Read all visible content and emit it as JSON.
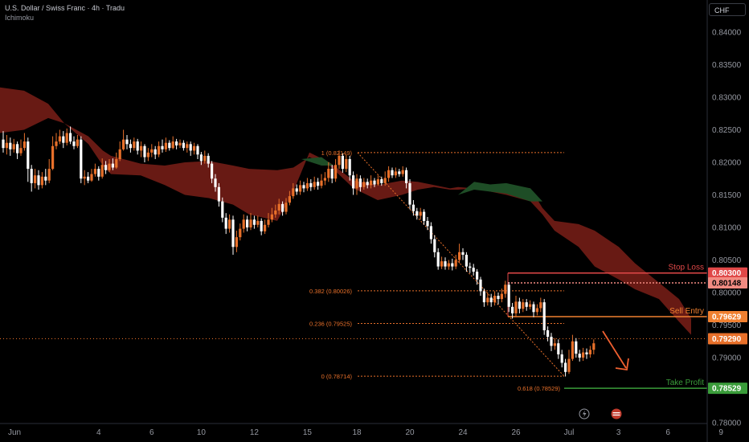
{
  "header": {
    "title": "U.S. Dollar / Swiss Franc · 4h · Tradu",
    "indicator": "Ichimoku"
  },
  "currency_button": "CHF",
  "colors": {
    "background": "#000000",
    "bull": "#e8702a",
    "bear": "#ffffff",
    "cloud_bear": "#7a1f17",
    "cloud_bull": "#1e4d26",
    "stop_loss": "#e04848",
    "sell_entry": "#f08030",
    "take_profit": "#3a9c3a",
    "fib": "#e8702a",
    "price_line": "#e8702a",
    "axis_text": "#9598a1"
  },
  "chart_data": {
    "type": "candlestick",
    "title": "U.S. Dollar / Swiss Franc · 4h · Tradu",
    "ylim": [
      0.78,
      0.8445
    ],
    "y_ticks": [
      "0.84000",
      "0.83500",
      "0.83000",
      "0.82500",
      "0.82000",
      "0.81500",
      "0.81000",
      "0.80500",
      "0.80000",
      "0.79500",
      "0.79000",
      "0.78500",
      "0.78000"
    ],
    "y_tick_values": [
      0.84,
      0.835,
      0.83,
      0.825,
      0.82,
      0.815,
      0.81,
      0.805,
      0.8,
      0.795,
      0.79,
      0.785,
      0.78
    ],
    "x_ticks": [
      "Jun",
      "4",
      "6",
      "10",
      "12",
      "15",
      "18",
      "20",
      "24",
      "26",
      "Jul",
      "3",
      "6",
      "9"
    ],
    "x_tick_bars": [
      2,
      27,
      42,
      56,
      71,
      86,
      100,
      115,
      130,
      145,
      160,
      174,
      188,
      203
    ],
    "candles": [
      [
        0.8235,
        0.8222,
        0.8248,
        0.8215
      ],
      [
        0.8222,
        0.823,
        0.8242,
        0.8212
      ],
      [
        0.823,
        0.822,
        0.8238,
        0.821
      ],
      [
        0.822,
        0.8228,
        0.8236,
        0.8215
      ],
      [
        0.8228,
        0.8214,
        0.8232,
        0.8205
      ],
      [
        0.8214,
        0.8222,
        0.8235,
        0.821
      ],
      [
        0.8222,
        0.8232,
        0.8245,
        0.8218
      ],
      [
        0.8232,
        0.819,
        0.8238,
        0.817
      ],
      [
        0.819,
        0.8168,
        0.8196,
        0.8155
      ],
      [
        0.8168,
        0.818,
        0.819,
        0.816
      ],
      [
        0.818,
        0.8165,
        0.8188,
        0.8158
      ],
      [
        0.8165,
        0.8178,
        0.8185,
        0.816
      ],
      [
        0.8178,
        0.8172,
        0.819,
        0.8165
      ],
      [
        0.8172,
        0.819,
        0.8205,
        0.8168
      ],
      [
        0.819,
        0.8225,
        0.824,
        0.8188
      ],
      [
        0.8225,
        0.8232,
        0.8245,
        0.822
      ],
      [
        0.8232,
        0.824,
        0.825,
        0.8228
      ],
      [
        0.824,
        0.823,
        0.8248,
        0.8222
      ],
      [
        0.823,
        0.8245,
        0.8252,
        0.8226
      ],
      [
        0.8245,
        0.8232,
        0.8255,
        0.8228
      ],
      [
        0.8232,
        0.8225,
        0.824,
        0.822
      ],
      [
        0.8225,
        0.8235,
        0.8242,
        0.8222
      ],
      [
        0.8235,
        0.8175,
        0.824,
        0.8168
      ],
      [
        0.8175,
        0.8178,
        0.8188,
        0.8165
      ],
      [
        0.8178,
        0.8172,
        0.8185,
        0.8168
      ],
      [
        0.8172,
        0.8182,
        0.819,
        0.817
      ],
      [
        0.8182,
        0.819,
        0.8198,
        0.8178
      ],
      [
        0.819,
        0.8178,
        0.8194,
        0.8172
      ],
      [
        0.8178,
        0.8196,
        0.8206,
        0.8175
      ],
      [
        0.8196,
        0.8188,
        0.8202,
        0.8182
      ],
      [
        0.8188,
        0.8198,
        0.8205,
        0.8185
      ],
      [
        0.8198,
        0.8192,
        0.8206,
        0.8188
      ],
      [
        0.8192,
        0.8205,
        0.8215,
        0.819
      ],
      [
        0.8205,
        0.822,
        0.8232,
        0.8202
      ],
      [
        0.822,
        0.8235,
        0.825,
        0.8218
      ],
      [
        0.8235,
        0.8228,
        0.8242,
        0.822
      ],
      [
        0.8228,
        0.8222,
        0.8235,
        0.8215
      ],
      [
        0.8222,
        0.8232,
        0.8238,
        0.8218
      ],
      [
        0.8232,
        0.8218,
        0.8236,
        0.8212
      ],
      [
        0.8218,
        0.8225,
        0.8232,
        0.8208
      ],
      [
        0.8225,
        0.8208,
        0.8228,
        0.82
      ],
      [
        0.8208,
        0.8215,
        0.8222,
        0.8202
      ],
      [
        0.8215,
        0.822,
        0.8228,
        0.8208
      ],
      [
        0.822,
        0.8212,
        0.8225,
        0.8205
      ],
      [
        0.8212,
        0.8225,
        0.8232,
        0.8208
      ],
      [
        0.8225,
        0.822,
        0.8235,
        0.8215
      ],
      [
        0.822,
        0.823,
        0.8238,
        0.8216
      ],
      [
        0.823,
        0.8222,
        0.8234,
        0.8218
      ],
      [
        0.8222,
        0.8232,
        0.824,
        0.822
      ],
      [
        0.8232,
        0.8226,
        0.8236,
        0.822
      ],
      [
        0.8226,
        0.823,
        0.8235,
        0.8222
      ],
      [
        0.823,
        0.8222,
        0.8234,
        0.8218
      ],
      [
        0.8222,
        0.8228,
        0.8232,
        0.8215
      ],
      [
        0.8228,
        0.8218,
        0.8232,
        0.821
      ],
      [
        0.8218,
        0.8225,
        0.823,
        0.8212
      ],
      [
        0.8225,
        0.8212,
        0.8228,
        0.8205
      ],
      [
        0.8212,
        0.8202,
        0.8216,
        0.8196
      ],
      [
        0.8202,
        0.821,
        0.8218,
        0.8198
      ],
      [
        0.821,
        0.8198,
        0.8214,
        0.8192
      ],
      [
        0.8198,
        0.8175,
        0.8202,
        0.8168
      ],
      [
        0.8175,
        0.8162,
        0.8182,
        0.8155
      ],
      [
        0.8162,
        0.814,
        0.8168,
        0.8132
      ],
      [
        0.814,
        0.8115,
        0.8146,
        0.8108
      ],
      [
        0.8115,
        0.8098,
        0.8122,
        0.809
      ],
      [
        0.8098,
        0.8112,
        0.812,
        0.8092
      ],
      [
        0.8112,
        0.807,
        0.8118,
        0.8058
      ],
      [
        0.807,
        0.8085,
        0.8095,
        0.8062
      ],
      [
        0.8085,
        0.8098,
        0.8106,
        0.808
      ],
      [
        0.8098,
        0.8112,
        0.812,
        0.8092
      ],
      [
        0.8112,
        0.81,
        0.8118,
        0.8094
      ],
      [
        0.81,
        0.8112,
        0.8122,
        0.8096
      ],
      [
        0.8112,
        0.8104,
        0.8118,
        0.8098
      ],
      [
        0.8104,
        0.811,
        0.8118,
        0.81
      ],
      [
        0.811,
        0.8094,
        0.8114,
        0.8088
      ],
      [
        0.8094,
        0.8104,
        0.8112,
        0.809
      ],
      [
        0.8104,
        0.8112,
        0.8122,
        0.81
      ],
      [
        0.8112,
        0.812,
        0.813,
        0.8108
      ],
      [
        0.812,
        0.8126,
        0.8135,
        0.8115
      ],
      [
        0.8126,
        0.8136,
        0.8144,
        0.812
      ],
      [
        0.8136,
        0.8124,
        0.814,
        0.8118
      ],
      [
        0.8124,
        0.8138,
        0.8145,
        0.812
      ],
      [
        0.8138,
        0.8148,
        0.8156,
        0.8134
      ],
      [
        0.8148,
        0.816,
        0.8168,
        0.8144
      ],
      [
        0.816,
        0.8155,
        0.8166,
        0.815
      ],
      [
        0.8155,
        0.8165,
        0.8172,
        0.815
      ],
      [
        0.8165,
        0.816,
        0.817,
        0.8154
      ],
      [
        0.816,
        0.8168,
        0.8176,
        0.8156
      ],
      [
        0.8168,
        0.8162,
        0.8174,
        0.8156
      ],
      [
        0.8162,
        0.817,
        0.8178,
        0.8158
      ],
      [
        0.817,
        0.8164,
        0.8176,
        0.8158
      ],
      [
        0.8164,
        0.8172,
        0.8182,
        0.816
      ],
      [
        0.8172,
        0.8176,
        0.8185,
        0.8165
      ],
      [
        0.8176,
        0.819,
        0.82,
        0.817
      ],
      [
        0.819,
        0.8175,
        0.8196,
        0.8168
      ],
      [
        0.8175,
        0.8196,
        0.8205,
        0.817
      ],
      [
        0.8196,
        0.821,
        0.8218,
        0.819
      ],
      [
        0.821,
        0.819,
        0.8214,
        0.8184
      ],
      [
        0.819,
        0.8205,
        0.8212,
        0.8185
      ],
      [
        0.8205,
        0.818,
        0.821,
        0.8172
      ],
      [
        0.818,
        0.816,
        0.8186,
        0.815
      ],
      [
        0.816,
        0.8175,
        0.8182,
        0.815
      ],
      [
        0.8175,
        0.8162,
        0.818,
        0.8155
      ],
      [
        0.8162,
        0.817,
        0.8176,
        0.8158
      ],
      [
        0.817,
        0.8165,
        0.8175,
        0.816
      ],
      [
        0.8165,
        0.8172,
        0.818,
        0.816
      ],
      [
        0.8172,
        0.8166,
        0.8176,
        0.8162
      ],
      [
        0.8166,
        0.8174,
        0.818,
        0.8164
      ],
      [
        0.8174,
        0.8168,
        0.8178,
        0.8164
      ],
      [
        0.8168,
        0.8176,
        0.8186,
        0.8164
      ],
      [
        0.8176,
        0.8188,
        0.8194,
        0.817
      ],
      [
        0.8188,
        0.818,
        0.8192,
        0.8176
      ],
      [
        0.818,
        0.8186,
        0.8192,
        0.8176
      ],
      [
        0.8186,
        0.8182,
        0.819,
        0.8178
      ],
      [
        0.8182,
        0.8188,
        0.8194,
        0.8178
      ],
      [
        0.8188,
        0.8168,
        0.8192,
        0.816
      ],
      [
        0.8168,
        0.8135,
        0.8174,
        0.8128
      ],
      [
        0.8135,
        0.8125,
        0.8142,
        0.8118
      ],
      [
        0.8125,
        0.8118,
        0.813,
        0.8112
      ],
      [
        0.8118,
        0.8124,
        0.813,
        0.8112
      ],
      [
        0.8124,
        0.811,
        0.8128,
        0.8104
      ],
      [
        0.811,
        0.8102,
        0.8116,
        0.8096
      ],
      [
        0.8102,
        0.8082,
        0.8108,
        0.8075
      ],
      [
        0.8082,
        0.8062,
        0.8088,
        0.8054
      ],
      [
        0.8062,
        0.804,
        0.8068,
        0.8035
      ],
      [
        0.804,
        0.8048,
        0.8055,
        0.8036
      ],
      [
        0.8048,
        0.804,
        0.8054,
        0.8035
      ],
      [
        0.804,
        0.8045,
        0.805,
        0.8035
      ],
      [
        0.8045,
        0.804,
        0.8052,
        0.8034
      ],
      [
        0.804,
        0.805,
        0.8058,
        0.8036
      ],
      [
        0.805,
        0.8062,
        0.8075,
        0.8045
      ],
      [
        0.8062,
        0.8058,
        0.8068,
        0.805
      ],
      [
        0.8058,
        0.804,
        0.8062,
        0.8032
      ],
      [
        0.804,
        0.8038,
        0.8046,
        0.803
      ],
      [
        0.8038,
        0.8032,
        0.8044,
        0.8026
      ],
      [
        0.8032,
        0.802,
        0.8036,
        0.8012
      ],
      [
        0.802,
        0.8002,
        0.8024,
        0.7995
      ],
      [
        0.8002,
        0.7985,
        0.8006,
        0.7978
      ],
      [
        0.7985,
        0.7992,
        0.8,
        0.798
      ],
      [
        0.7992,
        0.7985,
        0.7998,
        0.7978
      ],
      [
        0.7985,
        0.7995,
        0.8002,
        0.798
      ],
      [
        0.7995,
        0.799,
        0.8,
        0.7982
      ],
      [
        0.799,
        0.7998,
        0.8006,
        0.7985
      ],
      [
        0.7998,
        0.8012,
        0.8018,
        0.7992
      ],
      [
        0.8012,
        0.7978,
        0.8016,
        0.797
      ],
      [
        0.7978,
        0.7968,
        0.7984,
        0.796
      ],
      [
        0.7968,
        0.7986,
        0.7995,
        0.7962
      ],
      [
        0.7986,
        0.7975,
        0.7992,
        0.7968
      ],
      [
        0.7975,
        0.7985,
        0.799,
        0.797
      ],
      [
        0.7985,
        0.7978,
        0.799,
        0.7972
      ],
      [
        0.7978,
        0.7982,
        0.7988,
        0.7974
      ],
      [
        0.7982,
        0.797,
        0.7986,
        0.7962
      ],
      [
        0.797,
        0.7976,
        0.7982,
        0.7965
      ],
      [
        0.7976,
        0.7985,
        0.7992,
        0.797
      ],
      [
        0.7985,
        0.7942,
        0.799,
        0.7935
      ],
      [
        0.7942,
        0.7932,
        0.7948,
        0.7925
      ],
      [
        0.7932,
        0.7918,
        0.7938,
        0.791
      ],
      [
        0.7918,
        0.7922,
        0.793,
        0.7912
      ],
      [
        0.7922,
        0.7905,
        0.7928,
        0.7898
      ],
      [
        0.7905,
        0.7892,
        0.7912,
        0.7885
      ],
      [
        0.7892,
        0.7878,
        0.7898,
        0.7871
      ],
      [
        0.7878,
        0.7898,
        0.7912,
        0.7875
      ],
      [
        0.7898,
        0.7925,
        0.7935,
        0.7895
      ],
      [
        0.7925,
        0.7906,
        0.793,
        0.79
      ],
      [
        0.7906,
        0.79,
        0.7912,
        0.7894
      ],
      [
        0.79,
        0.7908,
        0.7915,
        0.7895
      ],
      [
        0.7908,
        0.7905,
        0.7914,
        0.7898
      ],
      [
        0.7905,
        0.7912,
        0.7918,
        0.79
      ],
      [
        0.7912,
        0.7922,
        0.7928,
        0.7905
      ]
    ],
    "fibonacci": [
      {
        "label": "1 (0.82149)",
        "value": 0.82149
      },
      {
        "label": "0.382 (0.80026)",
        "value": 0.80026
      },
      {
        "label": "0.236 (0.79525)",
        "value": 0.79525
      },
      {
        "label": "0 (0.78714)",
        "value": 0.78714
      },
      {
        "label": "0.618 (0.78529)",
        "value": 0.78529
      }
    ],
    "levels": [
      {
        "name": "Stop Loss",
        "value": 0.803,
        "label": "0.80300",
        "color": "#e04848"
      },
      {
        "name": "Sell Entry",
        "value": 0.79629,
        "label": "0.79629",
        "color": "#f08030"
      },
      {
        "name": "Take Profit",
        "value": 0.78529,
        "label": "0.78529",
        "color": "#3a9c3a"
      }
    ],
    "extra_price_labels": [
      {
        "value": 0.80148,
        "label": "0.80148",
        "color": "#f28b82"
      },
      {
        "value": 0.7929,
        "label": "0.79290",
        "color": "#e8702a"
      }
    ]
  }
}
